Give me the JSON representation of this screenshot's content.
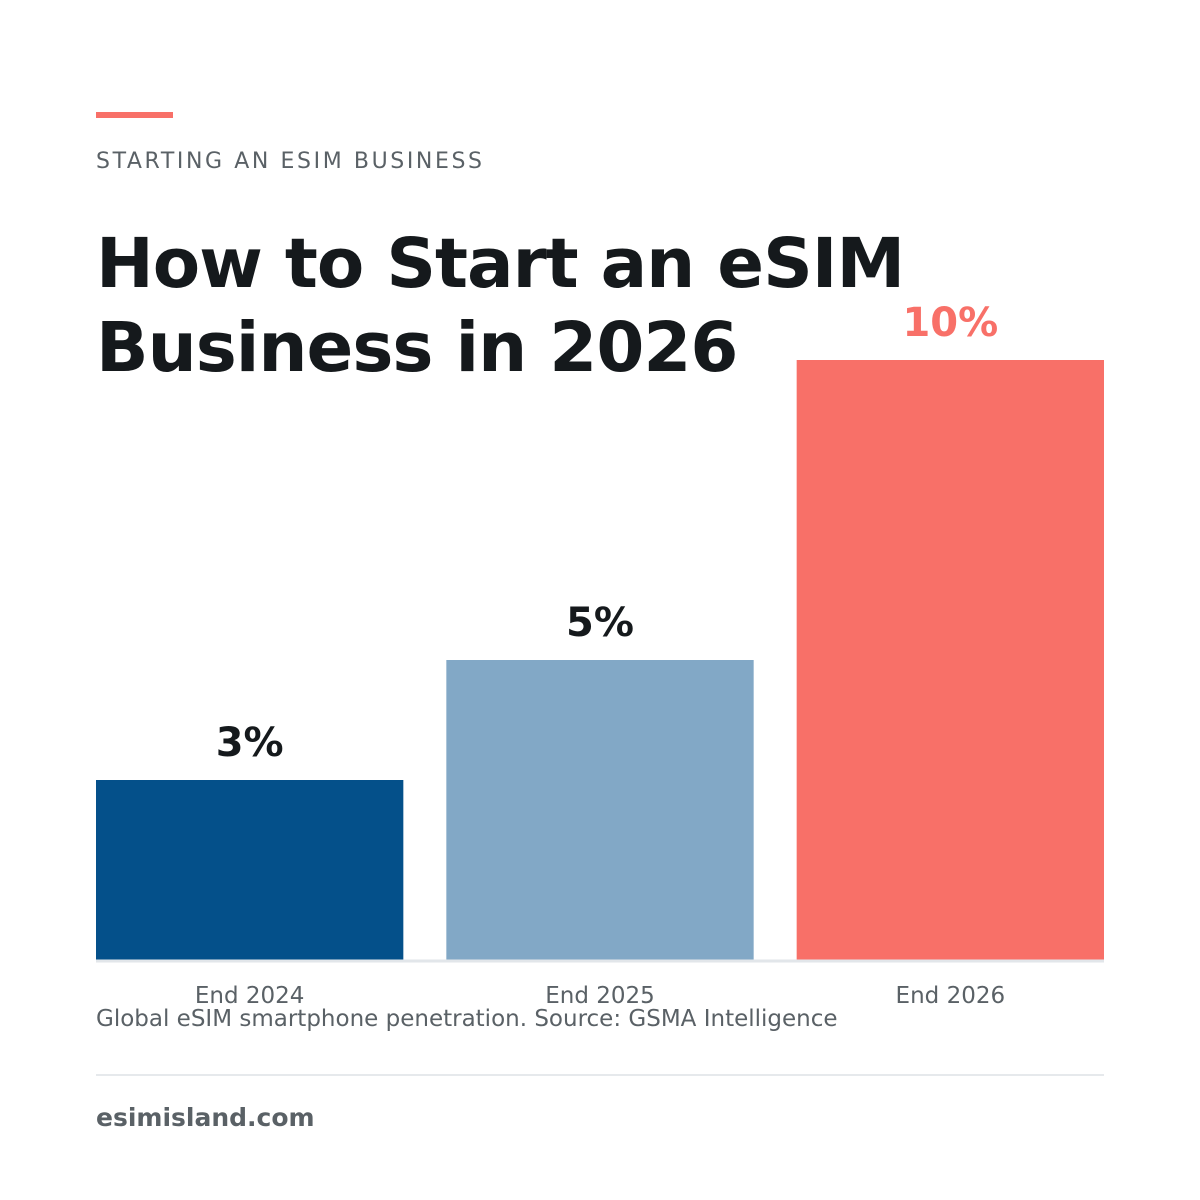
{
  "header": {
    "eyebrow": "STARTING AN ESIM BUSINESS",
    "title": "How to Start an eSIM Business in 2026"
  },
  "chart_data": {
    "type": "bar",
    "categories": [
      "End 2024",
      "End 2025",
      "End 2026"
    ],
    "values": [
      3,
      5,
      10
    ],
    "value_labels": [
      "3%",
      "5%",
      "10%"
    ],
    "title": "",
    "xlabel": "",
    "ylabel": "",
    "ylim": [
      0,
      10
    ],
    "grid": false,
    "bar_colors": [
      "#04508a",
      "#82a8c6",
      "#f87068"
    ],
    "label_colors": [
      "#15191c",
      "#15191c",
      "#f87068"
    ],
    "caption": "Global eSIM smartphone penetration. Source: GSMA Intelligence"
  },
  "footer": {
    "site": "esimisland.com"
  }
}
